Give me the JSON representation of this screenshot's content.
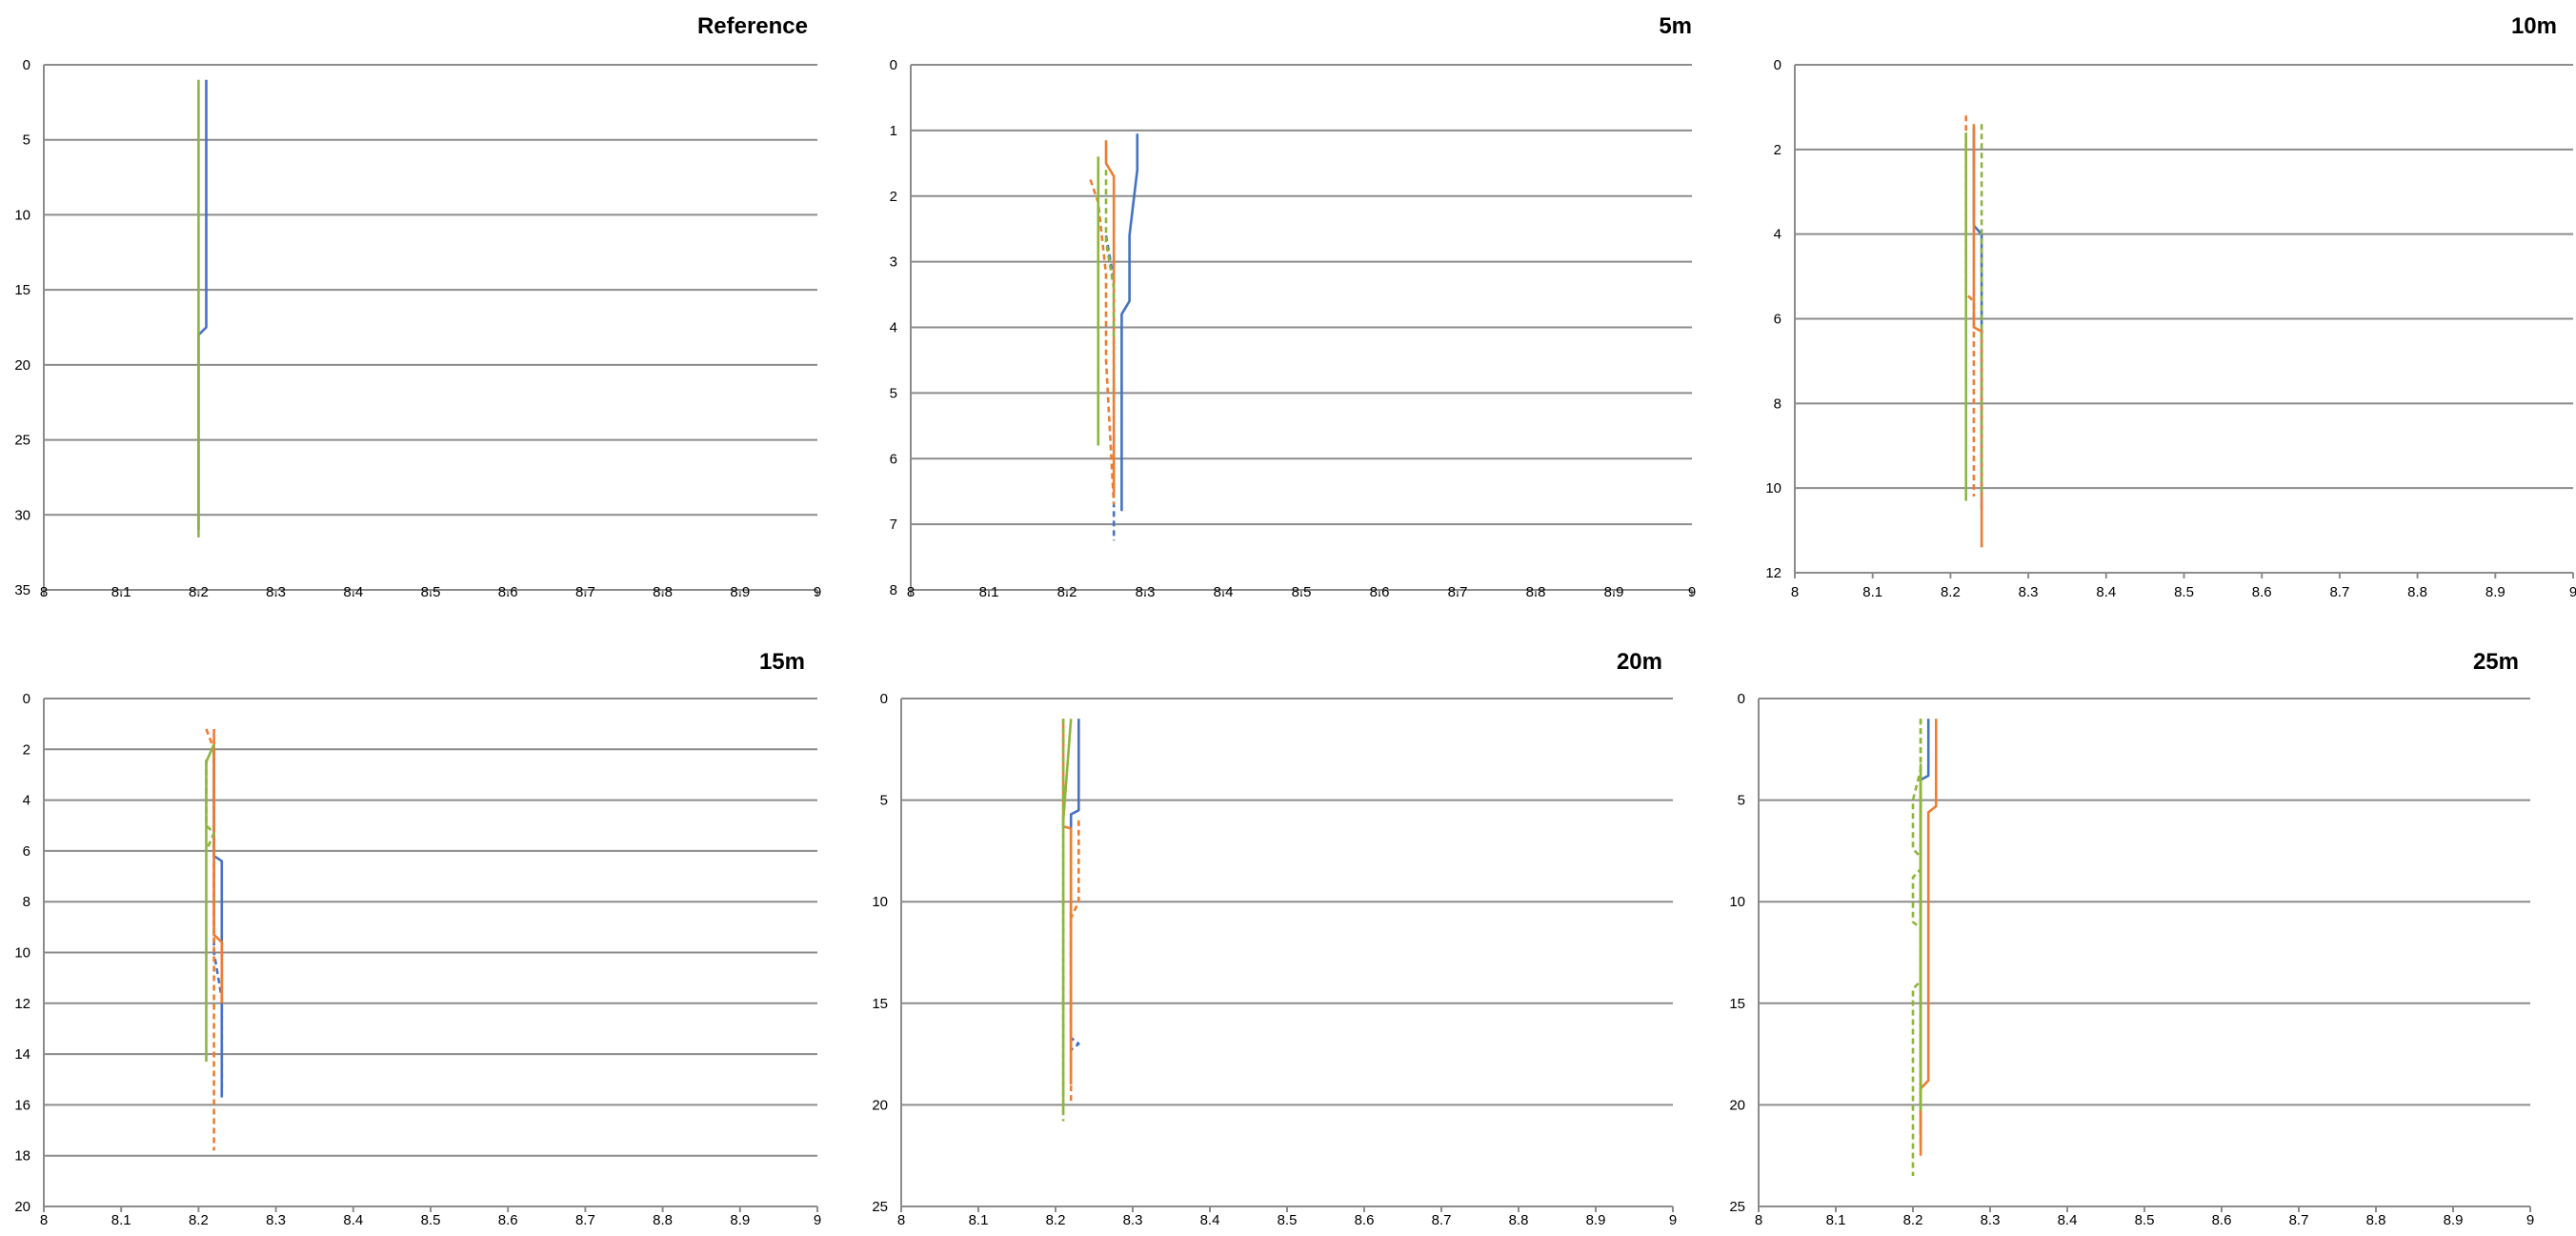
{
  "colors": {
    "blue": "#4472c4",
    "orange": "#ed7d31",
    "green": "#8cb63c"
  },
  "chart_data": [
    {
      "type": "line",
      "title": "Reference",
      "xlabel": "",
      "ylabel": "",
      "xlim": [
        8,
        9
      ],
      "ylim": [
        0,
        35
      ],
      "y_inverted": true,
      "grid": true,
      "legend": "none",
      "x_ticks": [
        "8",
        "8.1",
        "8.2",
        "8.3",
        "8.4",
        "8.5",
        "8.6",
        "8.7",
        "8.8",
        "8.9",
        "9"
      ],
      "y_ticks": [
        "0",
        "5",
        "10",
        "15",
        "20",
        "25",
        "30",
        "35"
      ],
      "series": [
        {
          "color": "blue",
          "dash": false,
          "points": [
            [
              8.21,
              1
            ],
            [
              8.21,
              17.5
            ],
            [
              8.2,
              18
            ],
            [
              8.2,
              31
            ]
          ]
        },
        {
          "color": "green",
          "dash": false,
          "points": [
            [
              8.2,
              1
            ],
            [
              8.2,
              31.5
            ]
          ]
        }
      ]
    },
    {
      "type": "line",
      "title": "5m",
      "xlabel": "",
      "ylabel": "",
      "xlim": [
        8,
        9
      ],
      "ylim": [
        0,
        8
      ],
      "y_inverted": true,
      "grid": true,
      "legend": "none",
      "x_ticks": [
        "8",
        "8.1",
        "8.2",
        "8.3",
        "8.4",
        "8.5",
        "8.6",
        "8.7",
        "8.8",
        "8.9",
        "9"
      ],
      "y_ticks": [
        "0",
        "1",
        "2",
        "3",
        "4",
        "5",
        "6",
        "7",
        "8"
      ],
      "series": [
        {
          "color": "blue",
          "dash": false,
          "points": [
            [
              8.29,
              1.05
            ],
            [
              8.29,
              1.6
            ],
            [
              8.28,
              2.6
            ],
            [
              8.28,
              3.6
            ],
            [
              8.27,
              3.8
            ],
            [
              8.27,
              6.8
            ]
          ]
        },
        {
          "color": "blue",
          "dash": true,
          "points": [
            [
              8.25,
              2.6
            ],
            [
              8.26,
              3.3
            ],
            [
              8.26,
              4.5
            ],
            [
              8.26,
              6.5
            ],
            [
              8.26,
              7.25
            ]
          ]
        },
        {
          "color": "orange",
          "dash": false,
          "points": [
            [
              8.25,
              1.15
            ],
            [
              8.25,
              1.5
            ],
            [
              8.26,
              1.7
            ],
            [
              8.26,
              4.5
            ],
            [
              8.26,
              6.6
            ]
          ]
        },
        {
          "color": "orange",
          "dash": true,
          "points": [
            [
              8.23,
              1.75
            ],
            [
              8.24,
              2.1
            ],
            [
              8.25,
              3.2
            ],
            [
              8.25,
              4.5
            ],
            [
              8.26,
              6.7
            ]
          ]
        },
        {
          "color": "green",
          "dash": false,
          "points": [
            [
              8.24,
              1.4
            ],
            [
              8.24,
              5.8
            ]
          ]
        },
        {
          "color": "green",
          "dash": true,
          "points": [
            [
              8.25,
              1.6
            ],
            [
              8.25,
              2.7
            ],
            [
              8.26,
              3.4
            ],
            [
              8.26,
              4.2
            ]
          ]
        }
      ]
    },
    {
      "type": "line",
      "title": "10m",
      "xlabel": "",
      "ylabel": "",
      "xlim": [
        8,
        9
      ],
      "ylim": [
        0,
        12
      ],
      "y_inverted": true,
      "grid": true,
      "legend": "none",
      "x_ticks": [
        "8",
        "8.1",
        "8.2",
        "8.3",
        "8.4",
        "8.5",
        "8.6",
        "8.7",
        "8.8",
        "8.9",
        "9"
      ],
      "y_ticks": [
        "0",
        "2",
        "4",
        "6",
        "8",
        "10",
        "12"
      ],
      "series": [
        {
          "color": "blue",
          "dash": false,
          "points": [
            [
              8.23,
              1.5
            ],
            [
              8.23,
              3.8
            ],
            [
              8.24,
              4
            ],
            [
              8.24,
              10.5
            ]
          ]
        },
        {
          "color": "orange",
          "dash": false,
          "points": [
            [
              8.23,
              1.4
            ],
            [
              8.23,
              6.2
            ],
            [
              8.24,
              6.3
            ],
            [
              8.24,
              11.4
            ]
          ]
        },
        {
          "color": "orange",
          "dash": true,
          "points": [
            [
              8.22,
              1.2
            ],
            [
              8.22,
              5.4
            ],
            [
              8.23,
              5.6
            ],
            [
              8.23,
              10.2
            ]
          ]
        },
        {
          "color": "green",
          "dash": false,
          "points": [
            [
              8.22,
              1.6
            ],
            [
              8.22,
              10.3
            ]
          ]
        },
        {
          "color": "green",
          "dash": true,
          "points": [
            [
              8.24,
              1.4
            ],
            [
              8.24,
              10.2
            ]
          ]
        }
      ]
    },
    {
      "type": "line",
      "title": "15m",
      "xlabel": "",
      "ylabel": "",
      "xlim": [
        8,
        9
      ],
      "ylim": [
        0,
        20
      ],
      "y_inverted": true,
      "grid": true,
      "legend": "none",
      "x_ticks": [
        "8",
        "8.1",
        "8.2",
        "8.3",
        "8.4",
        "8.5",
        "8.6",
        "8.7",
        "8.8",
        "8.9",
        "9"
      ],
      "y_ticks": [
        "0",
        "2",
        "4",
        "6",
        "8",
        "10",
        "12",
        "14",
        "16",
        "18",
        "20"
      ],
      "series": [
        {
          "color": "blue",
          "dash": false,
          "points": [
            [
              8.22,
              2
            ],
            [
              8.22,
              6.2
            ],
            [
              8.23,
              6.4
            ],
            [
              8.23,
              15.5
            ]
          ]
        },
        {
          "color": "blue",
          "dash": true,
          "points": [
            [
              8.22,
              2
            ],
            [
              8.22,
              10
            ],
            [
              8.23,
              11.8
            ],
            [
              8.23,
              15.8
            ]
          ]
        },
        {
          "color": "orange",
          "dash": false,
          "points": [
            [
              8.22,
              1.2
            ],
            [
              8.22,
              9.3
            ],
            [
              8.23,
              9.6
            ],
            [
              8.23,
              12
            ]
          ]
        },
        {
          "color": "orange",
          "dash": true,
          "points": [
            [
              8.21,
              1.2
            ],
            [
              8.22,
              2
            ],
            [
              8.22,
              17.8
            ]
          ]
        },
        {
          "color": "green",
          "dash": false,
          "points": [
            [
              8.22,
              1.8
            ],
            [
              8.21,
              2.5
            ],
            [
              8.21,
              14.3
            ]
          ]
        },
        {
          "color": "green",
          "dash": true,
          "points": [
            [
              8.21,
              2.4
            ],
            [
              8.21,
              5
            ],
            [
              8.22,
              5.3
            ],
            [
              8.21,
              6
            ]
          ]
        }
      ]
    },
    {
      "type": "line",
      "title": "20m",
      "xlabel": "",
      "ylabel": "",
      "xlim": [
        8,
        9
      ],
      "ylim": [
        0,
        25
      ],
      "y_inverted": true,
      "grid": true,
      "legend": "none",
      "x_ticks": [
        "8",
        "8.1",
        "8.2",
        "8.3",
        "8.4",
        "8.5",
        "8.6",
        "8.7",
        "8.8",
        "8.9",
        "9"
      ],
      "y_ticks": [
        "0",
        "5",
        "10",
        "15",
        "20",
        "25"
      ],
      "series": [
        {
          "color": "blue",
          "dash": false,
          "points": [
            [
              8.23,
              1
            ],
            [
              8.23,
              5.5
            ],
            [
              8.22,
              5.7
            ],
            [
              8.22,
              19
            ]
          ]
        },
        {
          "color": "blue",
          "dash": true,
          "points": [
            [
              8.22,
              10.5
            ],
            [
              8.22,
              16.7
            ],
            [
              8.23,
              17
            ],
            [
              8.22,
              17.3
            ]
          ]
        },
        {
          "color": "orange",
          "dash": false,
          "points": [
            [
              8.21,
              1
            ],
            [
              8.21,
              6.3
            ],
            [
              8.22,
              6.4
            ],
            [
              8.22,
              19
            ]
          ]
        },
        {
          "color": "orange",
          "dash": true,
          "points": [
            [
              8.23,
              6
            ],
            [
              8.23,
              10
            ],
            [
              8.22,
              10.8
            ],
            [
              8.22,
              20
            ]
          ]
        },
        {
          "color": "green",
          "dash": false,
          "points": [
            [
              8.22,
              1
            ],
            [
              8.21,
              6
            ],
            [
              8.21,
              20.4
            ]
          ]
        },
        {
          "color": "green",
          "dash": true,
          "points": [
            [
              8.21,
              1
            ],
            [
              8.21,
              20.8
            ]
          ]
        }
      ]
    },
    {
      "type": "line",
      "title": "25m",
      "xlabel": "",
      "ylabel": "",
      "xlim": [
        8,
        9
      ],
      "ylim": [
        0,
        25
      ],
      "y_inverted": true,
      "grid": true,
      "legend": "none",
      "x_ticks": [
        "8",
        "8.1",
        "8.2",
        "8.3",
        "8.4",
        "8.5",
        "8.6",
        "8.7",
        "8.8",
        "8.9",
        "9"
      ],
      "y_ticks": [
        "0",
        "5",
        "10",
        "15",
        "20",
        "25"
      ],
      "series": [
        {
          "color": "blue",
          "dash": false,
          "points": [
            [
              8.22,
              1
            ],
            [
              8.22,
              3.8
            ],
            [
              8.21,
              4
            ],
            [
              8.21,
              21.5
            ]
          ]
        },
        {
          "color": "orange",
          "dash": false,
          "points": [
            [
              8.23,
              1
            ],
            [
              8.23,
              5.3
            ],
            [
              8.22,
              5.6
            ],
            [
              8.22,
              18.8
            ],
            [
              8.21,
              19.2
            ],
            [
              8.21,
              22.5
            ]
          ]
        },
        {
          "color": "orange",
          "dash": true,
          "points": [
            [
              8.21,
              1
            ],
            [
              8.21,
              22
            ]
          ]
        },
        {
          "color": "green",
          "dash": false,
          "points": [
            [
              8.21,
              3.2
            ],
            [
              8.21,
              20.3
            ]
          ]
        },
        {
          "color": "green",
          "dash": true,
          "points": [
            [
              8.21,
              1
            ],
            [
              8.21,
              3.5
            ],
            [
              8.2,
              5
            ],
            [
              8.2,
              7.4
            ],
            [
              8.21,
              7.8
            ],
            [
              8.21,
              8.4
            ],
            [
              8.2,
              8.8
            ],
            [
              8.2,
              11
            ],
            [
              8.21,
              11.3
            ],
            [
              8.21,
              13.9
            ],
            [
              8.2,
              14.3
            ],
            [
              8.2,
              23.5
            ]
          ]
        }
      ]
    }
  ]
}
